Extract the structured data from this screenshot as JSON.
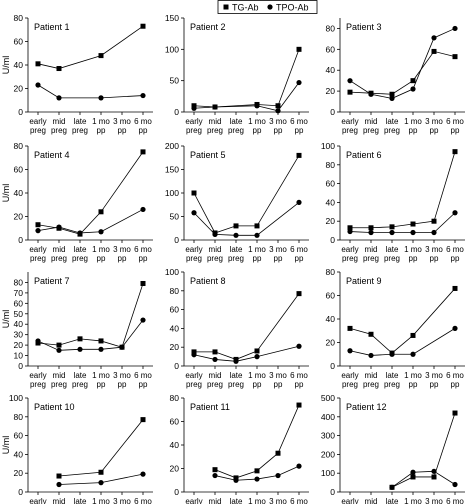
{
  "legend": {
    "items": [
      {
        "label": "TG-Ab",
        "marker": "square"
      },
      {
        "label": "TPO-Ab",
        "marker": "circle"
      }
    ]
  },
  "ylabel": "U/ml",
  "chart_data": [
    {
      "type": "line",
      "title": "Patient 1",
      "ylim": [
        0,
        80
      ],
      "yticks": [
        0,
        20,
        40,
        60,
        80
      ],
      "categories": [
        "early preg",
        "mid preg",
        "late preg",
        "1 mo pp",
        "3 mo pp",
        "6 mo pp"
      ],
      "series": [
        {
          "name": "TG-Ab",
          "marker": "square",
          "values": [
            41,
            37,
            null,
            48,
            null,
            73
          ]
        },
        {
          "name": "TPO-Ab",
          "marker": "circle",
          "values": [
            23,
            12,
            null,
            12,
            null,
            14
          ]
        }
      ]
    },
    {
      "type": "line",
      "title": "Patient 2",
      "ylim": [
        0,
        150
      ],
      "yticks": [
        0,
        50,
        100,
        150
      ],
      "categories": [
        "early preg",
        "mid preg",
        "late preg",
        "1 mo pp",
        "3 mo pp",
        "6 mo pp"
      ],
      "series": [
        {
          "name": "TG-Ab",
          "marker": "square",
          "values": [
            10,
            8,
            null,
            12,
            10,
            100
          ]
        },
        {
          "name": "TPO-Ab",
          "marker": "circle",
          "values": [
            6,
            8,
            null,
            10,
            2,
            47
          ]
        }
      ]
    },
    {
      "type": "line",
      "title": "Patient 3",
      "ylim": [
        0,
        90
      ],
      "yticks": [
        0,
        20,
        40,
        60,
        80
      ],
      "categories": [
        "early preg",
        "mid preg",
        "late preg",
        "1 mo pp",
        "3 mo pp",
        "6 mo pp"
      ],
      "series": [
        {
          "name": "TG-Ab",
          "marker": "square",
          "values": [
            19,
            18,
            17,
            30,
            58,
            53
          ]
        },
        {
          "name": "TPO-Ab",
          "marker": "circle",
          "values": [
            30,
            17,
            13,
            22,
            71,
            80
          ]
        }
      ]
    },
    {
      "type": "line",
      "title": "Patient 4",
      "ylim": [
        0,
        80
      ],
      "yticks": [
        0,
        20,
        40,
        60,
        80
      ],
      "categories": [
        "early preg",
        "mid preg",
        "late preg",
        "1 mo pp",
        "3 mo pp",
        "6 mo pp"
      ],
      "series": [
        {
          "name": "TG-Ab",
          "marker": "square",
          "values": [
            13,
            10,
            5,
            24,
            null,
            75
          ]
        },
        {
          "name": "TPO-Ab",
          "marker": "circle",
          "values": [
            8,
            11,
            6,
            7,
            null,
            26
          ]
        }
      ]
    },
    {
      "type": "line",
      "title": "Patient 5",
      "ylim": [
        0,
        200
      ],
      "yticks": [
        0,
        50,
        100,
        150,
        200
      ],
      "categories": [
        "early preg",
        "mid preg",
        "late preg",
        "1 mo pp",
        "3 mo pp",
        "6 mo pp"
      ],
      "series": [
        {
          "name": "TG-Ab",
          "marker": "square",
          "values": [
            100,
            15,
            30,
            30,
            null,
            180
          ]
        },
        {
          "name": "TPO-Ab",
          "marker": "circle",
          "values": [
            58,
            12,
            10,
            10,
            null,
            80
          ]
        }
      ]
    },
    {
      "type": "line",
      "title": "Patient 6",
      "ylim": [
        0,
        100
      ],
      "yticks": [
        0,
        20,
        40,
        60,
        80,
        100
      ],
      "categories": [
        "early preg",
        "mid preg",
        "late preg",
        "1 mo pp",
        "3 mo pp",
        "6 mo pp"
      ],
      "series": [
        {
          "name": "TG-Ab",
          "marker": "square",
          "values": [
            13,
            13,
            14,
            17,
            20,
            94
          ]
        },
        {
          "name": "TPO-Ab",
          "marker": "circle",
          "values": [
            9,
            8,
            8,
            8,
            8,
            29
          ]
        }
      ]
    },
    {
      "type": "line",
      "title": "Patient 7",
      "ylim": [
        0,
        90
      ],
      "yticks": [
        0,
        10,
        20,
        30,
        40,
        50,
        60,
        70,
        80
      ],
      "categories": [
        "early preg",
        "mid preg",
        "late preg",
        "1 mo pp",
        "3 mo pp",
        "6 mo pp"
      ],
      "series": [
        {
          "name": "TG-Ab",
          "marker": "square",
          "values": [
            22,
            20,
            26,
            24,
            18,
            79
          ]
        },
        {
          "name": "TPO-Ab",
          "marker": "circle",
          "values": [
            24,
            15,
            16,
            16,
            18,
            44
          ]
        }
      ]
    },
    {
      "type": "line",
      "title": "Patient 8",
      "ylim": [
        0,
        100
      ],
      "yticks": [
        0,
        20,
        40,
        60,
        80,
        100
      ],
      "categories": [
        "early preg",
        "mid preg",
        "late preg",
        "1 mo pp",
        "3 mo pp",
        "6 mo pp"
      ],
      "series": [
        {
          "name": "TG-Ab",
          "marker": "square",
          "values": [
            15,
            15,
            7,
            16,
            null,
            77
          ]
        },
        {
          "name": "TPO-Ab",
          "marker": "circle",
          "values": [
            12,
            7,
            5,
            10,
            null,
            21
          ]
        }
      ]
    },
    {
      "type": "line",
      "title": "Patient 9",
      "ylim": [
        0,
        80
      ],
      "yticks": [
        0,
        20,
        40,
        60,
        80
      ],
      "categories": [
        "early preg",
        "mid preg",
        "late preg",
        "1 mo pp",
        "3 mo pp",
        "6 mo pp"
      ],
      "series": [
        {
          "name": "TG-Ab",
          "marker": "square",
          "values": [
            32,
            27,
            11,
            26,
            null,
            66
          ]
        },
        {
          "name": "TPO-Ab",
          "marker": "circle",
          "values": [
            13,
            9,
            10,
            10,
            null,
            32
          ]
        }
      ]
    },
    {
      "type": "line",
      "title": "Patient 10",
      "ylim": [
        0,
        100
      ],
      "yticks": [
        0,
        20,
        40,
        60,
        80,
        100
      ],
      "categories": [
        "early preg",
        "mid preg",
        "late preg",
        "1 mo pp",
        "3 mo pp",
        "6 mo pp"
      ],
      "series": [
        {
          "name": "TG-Ab",
          "marker": "square",
          "values": [
            null,
            17,
            null,
            21,
            null,
            77
          ]
        },
        {
          "name": "TPO-Ab",
          "marker": "circle",
          "values": [
            null,
            8,
            null,
            10,
            null,
            19
          ]
        }
      ]
    },
    {
      "type": "line",
      "title": "Patient 11",
      "ylim": [
        0,
        80
      ],
      "yticks": [
        0,
        20,
        40,
        60,
        80
      ],
      "categories": [
        "early preg",
        "mid preg",
        "late preg",
        "1 mo pp",
        "3 mo pp",
        "6 mo pp"
      ],
      "series": [
        {
          "name": "TG-Ab",
          "marker": "square",
          "values": [
            null,
            19,
            12,
            18,
            33,
            74
          ]
        },
        {
          "name": "TPO-Ab",
          "marker": "circle",
          "values": [
            null,
            14,
            10,
            11,
            14,
            22
          ]
        }
      ]
    },
    {
      "type": "line",
      "title": "Patient 12",
      "ylim": [
        0,
        500
      ],
      "yticks": [
        0,
        100,
        200,
        300,
        400,
        500
      ],
      "categories": [
        "early preg",
        "mid preg",
        "late preg",
        "1 mo pp",
        "3 mo pp",
        "6 mo pp"
      ],
      "series": [
        {
          "name": "TG-Ab",
          "marker": "square",
          "values": [
            null,
            null,
            25,
            80,
            80,
            420
          ]
        },
        {
          "name": "TPO-Ab",
          "marker": "circle",
          "values": [
            null,
            null,
            25,
            105,
            110,
            40
          ]
        }
      ]
    }
  ]
}
